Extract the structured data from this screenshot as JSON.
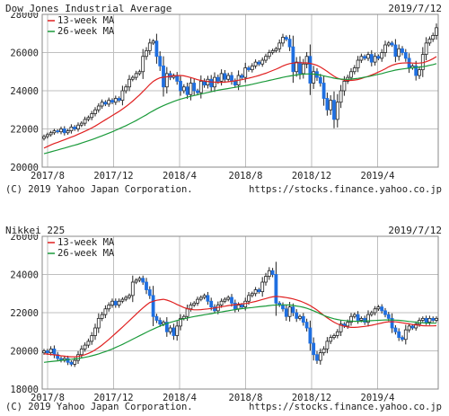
{
  "chart_data": [
    {
      "type": "candlestick",
      "title": "Dow Jones Industrial Average",
      "date": "2019/7/12",
      "ylim": [
        20000,
        28000
      ],
      "yticks": [
        20000,
        22000,
        24000,
        26000,
        28000
      ],
      "xticks": [
        "2017/8",
        "2017/12",
        "2018/4",
        "2018/8",
        "2018/12",
        "2019/4"
      ],
      "legend": [
        "13-week MA",
        "26-week MA"
      ],
      "copyright": "(C) 2019 Yahoo Japan Corporation.",
      "url": "https://stocks.finance.yahoo.co.jp",
      "series": [
        {
          "name": "close",
          "values": [
            21600,
            21700,
            21800,
            21900,
            21850,
            22000,
            21800,
            21900,
            22100,
            22000,
            22200,
            22300,
            22500,
            22600,
            22800,
            23000,
            23200,
            23400,
            23300,
            23500,
            23400,
            23600,
            23500,
            24000,
            24200,
            24600,
            24700,
            24900,
            25000,
            25800,
            26100,
            26500,
            26600,
            25800,
            25300,
            24200,
            24900,
            24700,
            24800,
            24500,
            24000,
            24200,
            23800,
            24400,
            24000,
            23900,
            24500,
            24300,
            24600,
            24200,
            24700,
            24500,
            24900,
            24600,
            24800,
            24500,
            24300,
            24800,
            24700,
            25200,
            25100,
            25300,
            25500,
            25400,
            25600,
            25800,
            26000,
            26100,
            26200,
            26500,
            26800,
            26700,
            26300,
            25000,
            25500,
            24900,
            25400,
            25800,
            24400,
            25000,
            24700,
            24400,
            23600,
            23000,
            23500,
            22500,
            23400,
            24000,
            24500,
            24700,
            25000,
            25200,
            25600,
            25800,
            25700,
            25900,
            25500,
            25800,
            25700,
            26000,
            26400,
            26500,
            26400,
            25800,
            26200,
            26000,
            25700,
            25200,
            25300,
            24800,
            25100,
            25900,
            26500,
            26700,
            26900,
            27300
          ]
        },
        {
          "name": "13-week MA",
          "values": [
            21000,
            21080,
            21160,
            21240,
            21300,
            21370,
            21430,
            21500,
            21570,
            21640,
            21720,
            21800,
            21880,
            21960,
            22050,
            22150,
            22260,
            22370,
            22480,
            22590,
            22700,
            22810,
            22920,
            23040,
            23170,
            23310,
            23460,
            23620,
            23780,
            23960,
            24140,
            24330,
            24490,
            24600,
            24680,
            24710,
            24730,
            24760,
            24780,
            24790,
            24800,
            24780,
            24740,
            24690,
            24640,
            24580,
            24540,
            24510,
            24490,
            24460,
            24450,
            24440,
            24440,
            24450,
            24470,
            24500,
            24520,
            24550,
            24580,
            24620,
            24660,
            24700,
            24750,
            24800,
            24860,
            24920,
            24990,
            25060,
            25130,
            25210,
            25300,
            25370,
            25420,
            25450,
            25470,
            25470,
            25460,
            25460,
            25430,
            25390,
            25330,
            25240,
            25130,
            25010,
            24880,
            24760,
            24660,
            24600,
            24560,
            24540,
            24540,
            24560,
            24590,
            24640,
            24700,
            24760,
            24830,
            24900,
            24980,
            25060,
            25150,
            25250,
            25330,
            25390,
            25430,
            25450,
            25460,
            25460,
            25450,
            25440,
            25450,
            25470,
            25520,
            25590,
            25680,
            25790
          ]
        },
        {
          "name": "26-week MA",
          "values": [
            20700,
            20750,
            20800,
            20850,
            20900,
            20950,
            21000,
            21050,
            21100,
            21150,
            21200,
            21260,
            21320,
            21380,
            21440,
            21500,
            21570,
            21640,
            21710,
            21780,
            21850,
            21930,
            22010,
            22090,
            22170,
            22260,
            22350,
            22440,
            22540,
            22640,
            22740,
            22850,
            22950,
            23050,
            23140,
            23220,
            23300,
            23370,
            23440,
            23500,
            23560,
            23610,
            23660,
            23710,
            23750,
            23790,
            23830,
            23870,
            23910,
            23950,
            23990,
            24030,
            24060,
            24090,
            24120,
            24150,
            24180,
            24210,
            24240,
            24270,
            24300,
            24340,
            24380,
            24420,
            24460,
            24500,
            24540,
            24580,
            24620,
            24660,
            24700,
            24740,
            24770,
            24800,
            24830,
            24850,
            24870,
            24880,
            24880,
            24870,
            24850,
            24820,
            24780,
            24740,
            24700,
            24660,
            24630,
            24610,
            24600,
            24600,
            24610,
            24630,
            24650,
            24680,
            24710,
            24740,
            24780,
            24820,
            24860,
            24900,
            24950,
            25000,
            25040,
            25080,
            25110,
            25140,
            25160,
            25180,
            25200,
            25220,
            25240,
            25260,
            25290,
            25330,
            25370,
            25420
          ]
        }
      ]
    },
    {
      "type": "candlestick",
      "title": "Nikkei 225",
      "date": "2019/7/12",
      "ylim": [
        18000,
        26000
      ],
      "yticks": [
        18000,
        20000,
        22000,
        24000,
        26000
      ],
      "xticks": [
        "2017/8",
        "2017/12",
        "2018/4",
        "2018/8",
        "2018/12",
        "2019/4"
      ],
      "legend": [
        "13-week MA",
        "26-week MA"
      ],
      "copyright": "(C) 2019 Yahoo Japan Corporation.",
      "url": "https://stocks.finance.yahoo.co.jp",
      "series": [
        {
          "name": "close",
          "values": [
            20000,
            19900,
            20100,
            19800,
            19600,
            19500,
            19600,
            19400,
            19300,
            19500,
            19800,
            20100,
            20300,
            20500,
            20800,
            21200,
            21700,
            21900,
            22200,
            22400,
            22600,
            22400,
            22600,
            22700,
            22800,
            22900,
            23600,
            23700,
            23800,
            23600,
            23200,
            22900,
            21800,
            21600,
            21400,
            21500,
            21000,
            21200,
            20800,
            21300,
            21700,
            21800,
            22200,
            22400,
            22500,
            22700,
            22800,
            22900,
            22600,
            22300,
            22100,
            22400,
            22600,
            22700,
            22800,
            22500,
            22200,
            22400,
            22300,
            22600,
            22900,
            23000,
            23200,
            23100,
            23600,
            23900,
            24200,
            24000,
            22500,
            22400,
            22200,
            21800,
            22300,
            22000,
            21700,
            21800,
            21500,
            21200,
            20400,
            19800,
            19500,
            19900,
            20100,
            20500,
            20700,
            20800,
            21000,
            21400,
            21300,
            21500,
            21800,
            21900,
            21600,
            21700,
            21500,
            21900,
            22000,
            22200,
            22300,
            22100,
            21900,
            21700,
            21200,
            21000,
            20700,
            20600,
            21100,
            21300,
            21200,
            21400,
            21600,
            21700,
            21500,
            21700,
            21600,
            21700
          ]
        },
        {
          "name": "13-week MA",
          "values": [
            19850,
            19830,
            19810,
            19790,
            19770,
            19740,
            19720,
            19700,
            19690,
            19690,
            19710,
            19750,
            19800,
            19870,
            19950,
            20050,
            20170,
            20300,
            20450,
            20600,
            20760,
            20920,
            21080,
            21240,
            21410,
            21580,
            21750,
            21920,
            22090,
            22250,
            22400,
            22530,
            22600,
            22650,
            22680,
            22700,
            22660,
            22600,
            22520,
            22430,
            22350,
            22270,
            22210,
            22170,
            22150,
            22150,
            22160,
            22180,
            22200,
            22220,
            22250,
            22280,
            22310,
            22340,
            22370,
            22400,
            22420,
            22440,
            22460,
            22480,
            22510,
            22550,
            22590,
            22640,
            22690,
            22740,
            22790,
            22830,
            22850,
            22840,
            22820,
            22790,
            22760,
            22720,
            22670,
            22610,
            22540,
            22460,
            22370,
            22260,
            22140,
            22000,
            21860,
            21730,
            21610,
            21500,
            21410,
            21340,
            21290,
            21250,
            21230,
            21230,
            21240,
            21260,
            21280,
            21310,
            21340,
            21380,
            21420,
            21460,
            21500,
            21520,
            21530,
            21520,
            21500,
            21470,
            21440,
            21410,
            21380,
            21360,
            21340,
            21320,
            21310,
            21310,
            21310,
            21320
          ]
        },
        {
          "name": "26-week MA",
          "values": [
            19400,
            19420,
            19440,
            19460,
            19480,
            19500,
            19520,
            19540,
            19560,
            19580,
            19600,
            19630,
            19660,
            19700,
            19740,
            19790,
            19840,
            19900,
            19960,
            20030,
            20100,
            20180,
            20260,
            20340,
            20430,
            20520,
            20610,
            20700,
            20790,
            20880,
            20970,
            21060,
            21140,
            21220,
            21300,
            21370,
            21430,
            21490,
            21540,
            21590,
            21640,
            21680,
            21720,
            21760,
            21800,
            21830,
            21860,
            21890,
            21920,
            21950,
            21980,
            22010,
            22040,
            22070,
            22100,
            22130,
            22160,
            22190,
            22210,
            22230,
            22250,
            22270,
            22290,
            22310,
            22330,
            22350,
            22370,
            22390,
            22400,
            22410,
            22410,
            22410,
            22400,
            22380,
            22350,
            22320,
            22280,
            22230,
            22170,
            22100,
            22020,
            21940,
            21860,
            21790,
            21730,
            21680,
            21640,
            21610,
            21590,
            21570,
            21560,
            21550,
            21550,
            21550,
            21560,
            21570,
            21580,
            21590,
            21600,
            21610,
            21620,
            21620,
            21620,
            21610,
            21600,
            21580,
            21560,
            21540,
            21520,
            21500,
            21480,
            21470,
            21460,
            21450,
            21450,
            21450
          ]
        }
      ]
    }
  ]
}
